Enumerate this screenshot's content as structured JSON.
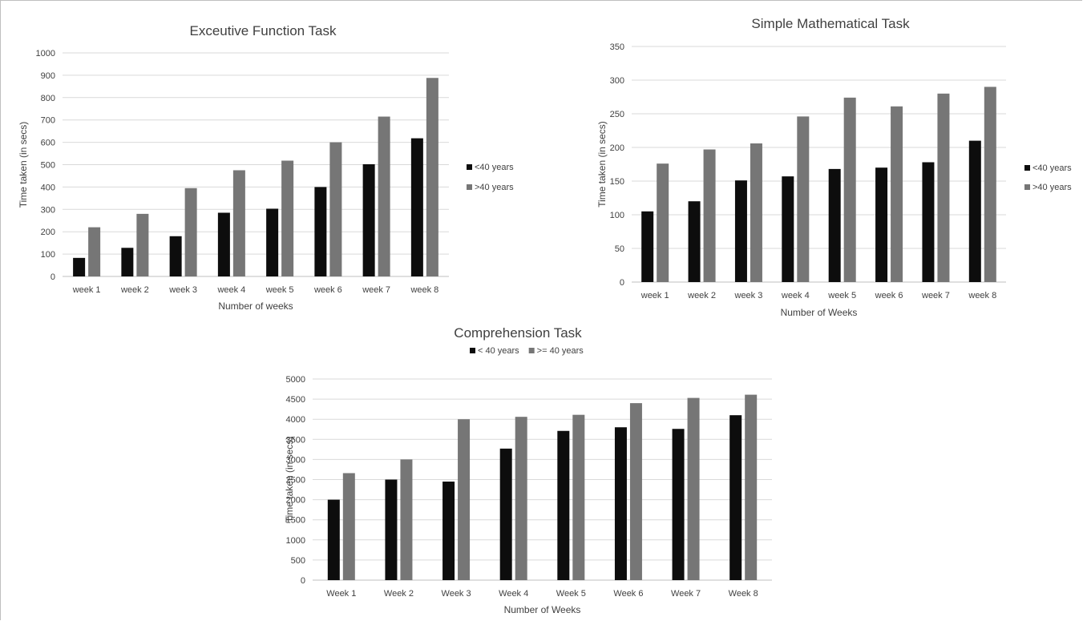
{
  "chart_data": [
    {
      "type": "bar",
      "title": "Exceutive Function Task",
      "xlabel": "Number of weeks",
      "ylabel": "Time taken (in secs)",
      "categories": [
        "week 1",
        "week 2",
        "week 3",
        "week 4",
        "week 5",
        "week 6",
        "week 7",
        "week 8"
      ],
      "ylim": [
        0,
        1000
      ],
      "yticks": [
        0,
        100,
        200,
        300,
        400,
        500,
        600,
        700,
        800,
        900,
        1000
      ],
      "series": [
        {
          "name": "<40 years",
          "color": "#0d0d0d",
          "values": [
            83,
            128,
            180,
            285,
            303,
            400,
            502,
            618
          ]
        },
        {
          "name": ">40 years",
          "color": "#767676",
          "values": [
            220,
            280,
            395,
            475,
            518,
            600,
            715,
            888
          ]
        }
      ],
      "legend": "right",
      "grid": true
    },
    {
      "type": "bar",
      "title": "Simple Mathematical Task",
      "xlabel": "Number of Weeks",
      "ylabel": "Time taken (in secs)",
      "categories": [
        "week 1",
        "week 2",
        "week 3",
        "week 4",
        "week 5",
        "week 6",
        "week 7",
        "week 8"
      ],
      "ylim": [
        0,
        350
      ],
      "yticks": [
        0,
        50,
        100,
        150,
        200,
        250,
        300,
        350
      ],
      "series": [
        {
          "name": "<40 years",
          "color": "#0d0d0d",
          "values": [
            105,
            120,
            151,
            157,
            168,
            170,
            178,
            210
          ]
        },
        {
          "name": ">40 years",
          "color": "#767676",
          "values": [
            176,
            197,
            206,
            246,
            274,
            261,
            280,
            290
          ]
        }
      ],
      "legend": "right",
      "grid": true
    },
    {
      "type": "bar",
      "title": "Comprehension Task",
      "xlabel": "Number of Weeks",
      "ylabel": "Time taken (in secs)",
      "categories": [
        "Week 1",
        "Week 2",
        "Week 3",
        "Week 4",
        "Week 5",
        "Week 6",
        "Week 7",
        "Week 8"
      ],
      "ylim": [
        0,
        5000
      ],
      "yticks": [
        0,
        500,
        1000,
        1500,
        2000,
        2500,
        3000,
        3500,
        4000,
        4500,
        5000
      ],
      "series": [
        {
          "name": "< 40 years",
          "color": "#0d0d0d",
          "values": [
            2000,
            2500,
            2450,
            3270,
            3710,
            3800,
            3760,
            4100
          ]
        },
        {
          "name": ">= 40 years",
          "color": "#767676",
          "values": [
            2660,
            3000,
            4000,
            4060,
            4110,
            4400,
            4530,
            4610
          ]
        }
      ],
      "legend": "top",
      "grid": true
    }
  ]
}
